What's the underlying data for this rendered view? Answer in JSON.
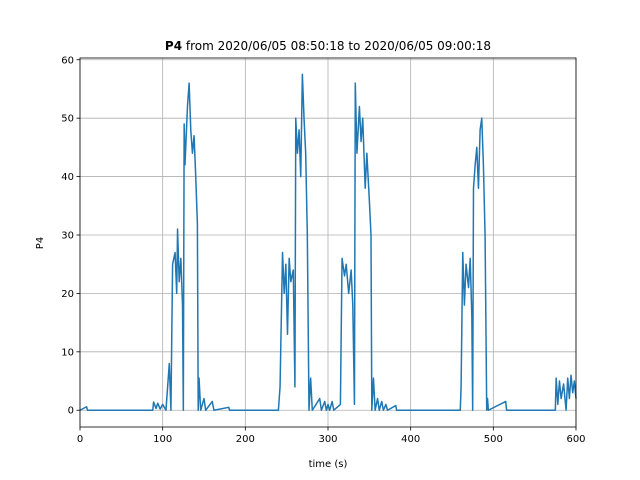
{
  "chart_data": {
    "type": "line",
    "title_name": "P4",
    "title_range": "from 2020/06/05 08:50:18 to 2020/06/05 09:00:18",
    "xlabel": "time (s)",
    "ylabel": "P4",
    "color": "#1f77b4",
    "grid": true,
    "xlim": [
      0,
      600
    ],
    "ylim": [
      -2.87,
      60.3
    ],
    "xticks": [
      0,
      100,
      200,
      300,
      400,
      500,
      600
    ],
    "yticks": [
      0,
      10,
      20,
      30,
      40,
      50,
      60
    ],
    "x": [
      0,
      8,
      9,
      10,
      88,
      89,
      92,
      94,
      97,
      100,
      104,
      108,
      110,
      112,
      115,
      117,
      118,
      120,
      122,
      124,
      125,
      126,
      127,
      130,
      132,
      134,
      136,
      138,
      140,
      142,
      143,
      144,
      146,
      150,
      152,
      160,
      162,
      180,
      181,
      240,
      242,
      245,
      247,
      249,
      251,
      253,
      255,
      258,
      260,
      261,
      263,
      265,
      267,
      269,
      271,
      273,
      275,
      277,
      279,
      281,
      290,
      292,
      296,
      298,
      300,
      302,
      305,
      307,
      315,
      317,
      320,
      322,
      325,
      328,
      330,
      332,
      333,
      335,
      338,
      340,
      342,
      345,
      347,
      350,
      352,
      353,
      355,
      357,
      360,
      362,
      365,
      367,
      370,
      372,
      382,
      383,
      460,
      461,
      463,
      465,
      467,
      470,
      472,
      474,
      475,
      476,
      478,
      480,
      482,
      484,
      486,
      488,
      490,
      492,
      493,
      494,
      515,
      516,
      575,
      576,
      578,
      580,
      582,
      585,
      588,
      590,
      592,
      594,
      596,
      598,
      600
    ],
    "values": [
      0,
      0.6,
      0,
      0,
      0,
      1.4,
      0.3,
      1.2,
      0.2,
      1.0,
      0,
      8,
      0,
      25,
      27,
      20,
      31,
      22,
      26,
      18,
      0,
      49,
      42,
      52,
      56,
      48,
      44,
      47,
      40,
      32,
      0,
      5.5,
      0,
      2,
      0,
      1.5,
      0,
      0.5,
      0,
      0,
      4,
      27,
      20,
      25,
      13,
      26,
      22,
      24,
      4,
      50,
      44,
      48,
      40,
      57.5,
      50,
      44,
      30,
      0,
      5.5,
      0,
      2,
      0,
      1.5,
      0,
      1,
      0,
      1.5,
      0,
      1,
      26,
      23,
      25,
      20,
      24,
      18,
      1,
      56,
      44,
      52,
      46,
      50,
      38,
      44,
      36,
      30,
      0,
      5.5,
      0,
      2,
      0,
      1.5,
      0,
      1,
      0,
      0.8,
      0,
      0,
      4,
      27,
      18,
      25,
      21,
      26,
      16,
      0,
      38,
      42,
      45,
      38,
      48,
      50,
      42,
      30,
      0,
      2,
      0,
      1.5,
      0,
      0,
      5.5,
      1,
      5,
      2,
      4.5,
      0,
      5.5,
      2,
      6,
      3,
      5,
      2
    ]
  }
}
